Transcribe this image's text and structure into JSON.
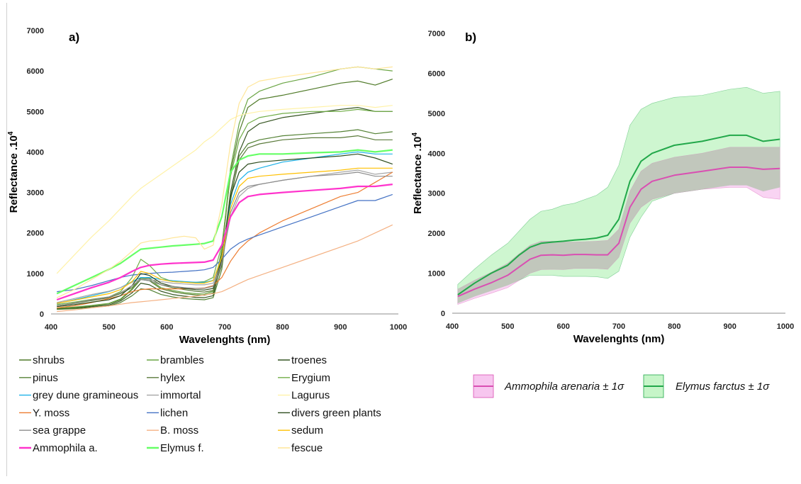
{
  "chart_data": [
    {
      "panel": "a)",
      "type": "line",
      "xlabel": "Wavelenghts (nm)",
      "ylabel": "Reflectance .10",
      "ylabel_sup": "4",
      "xlim": [
        400,
        1000
      ],
      "ylim": [
        0,
        7000
      ],
      "x_ticks": [
        400,
        500,
        600,
        700,
        800,
        900,
        1000
      ],
      "y_ticks": [
        0,
        1000,
        2000,
        3000,
        4000,
        5000,
        6000,
        7000
      ],
      "grid": false,
      "legend_position": "bottom",
      "x": [
        410,
        440,
        470,
        500,
        520,
        540,
        555,
        570,
        590,
        610,
        630,
        650,
        665,
        680,
        695,
        710,
        725,
        740,
        760,
        800,
        850,
        900,
        930,
        960,
        990
      ],
      "series": [
        {
          "name": "shrubs",
          "color": "#4f7a28",
          "values": [
            130,
            160,
            200,
            250,
            350,
            600,
            850,
            820,
            620,
            550,
            500,
            470,
            460,
            520,
            1500,
            3500,
            4500,
            5100,
            5300,
            5400,
            5550,
            5700,
            5750,
            5650,
            5800
          ]
        },
        {
          "name": "brambles",
          "color": "#6aa544",
          "values": [
            140,
            170,
            210,
            260,
            370,
            620,
            880,
            850,
            650,
            580,
            530,
            500,
            490,
            560,
            1600,
            3600,
            4700,
            5300,
            5500,
            5700,
            5850,
            6050,
            6100,
            6050,
            6000
          ]
        },
        {
          "name": "troenes",
          "color": "#375623",
          "values": [
            120,
            140,
            180,
            220,
            320,
            520,
            760,
            720,
            560,
            480,
            440,
            410,
            400,
            450,
            1300,
            3000,
            4000,
            4500,
            4700,
            4850,
            4950,
            5050,
            5100,
            5000,
            5000
          ]
        },
        {
          "name": "pinus",
          "color": "#548235",
          "values": [
            110,
            130,
            160,
            200,
            280,
            450,
            620,
            600,
            480,
            420,
            380,
            360,
            350,
            400,
            1100,
            2800,
            3900,
            4200,
            4300,
            4400,
            4450,
            4500,
            4550,
            4450,
            4500
          ]
        },
        {
          "name": "hylex",
          "color": "#5a7a3a",
          "values": [
            200,
            260,
            330,
            400,
            500,
            650,
            900,
            880,
            720,
            650,
            600,
            560,
            540,
            580,
            1200,
            2900,
            3800,
            4100,
            4200,
            4300,
            4350,
            4350,
            4400,
            4300,
            4300
          ]
        },
        {
          "name": "Erygium",
          "color": "#70ad47",
          "values": [
            230,
            290,
            360,
            420,
            550,
            900,
            1350,
            1200,
            900,
            800,
            780,
            780,
            800,
            900,
            1700,
            3400,
            4300,
            4700,
            4850,
            4950,
            5000,
            5000,
            5050,
            5000,
            5000
          ]
        },
        {
          "name": "grey dune gramineous",
          "color": "#1fb2e8",
          "values": [
            250,
            350,
            450,
            550,
            650,
            800,
            900,
            900,
            850,
            820,
            800,
            780,
            780,
            830,
            1400,
            2700,
            3300,
            3500,
            3600,
            3750,
            3850,
            3950,
            4000,
            3950,
            3950
          ]
        },
        {
          "name": "immortal",
          "color": "#a6a6a6",
          "values": [
            280,
            380,
            480,
            560,
            650,
            780,
            850,
            850,
            800,
            760,
            740,
            720,
            720,
            760,
            1300,
            2400,
            2900,
            3100,
            3200,
            3300,
            3400,
            3500,
            3550,
            3450,
            3500
          ]
        },
        {
          "name": "Lagurus",
          "color": "#fff2a8",
          "values": [
            1000,
            1450,
            1900,
            2300,
            2600,
            2900,
            3100,
            3250,
            3450,
            3650,
            3850,
            4050,
            4250,
            4400,
            4600,
            4800,
            4900,
            4950,
            5000,
            5050,
            5100,
            5150,
            5150,
            5100,
            5150
          ]
        },
        {
          "name": "Y. moss",
          "color": "#ed7d31",
          "values": [
            150,
            200,
            280,
            380,
            450,
            550,
            600,
            620,
            620,
            620,
            620,
            630,
            640,
            700,
            900,
            1300,
            1600,
            1800,
            2000,
            2300,
            2600,
            2900,
            3000,
            3250,
            3500
          ]
        },
        {
          "name": "lichen",
          "color": "#4472c4",
          "values": [
            550,
            600,
            700,
            820,
            900,
            960,
            980,
            1000,
            1020,
            1030,
            1050,
            1070,
            1090,
            1150,
            1350,
            1600,
            1750,
            1850,
            1950,
            2150,
            2400,
            2650,
            2800,
            2800,
            2950
          ]
        },
        {
          "name": "divers green plants",
          "color": "#2e4d1f",
          "values": [
            180,
            230,
            290,
            350,
            450,
            700,
            1000,
            950,
            760,
            680,
            630,
            600,
            590,
            630,
            1350,
            2900,
            3500,
            3700,
            3750,
            3800,
            3850,
            3900,
            3950,
            3850,
            3700
          ]
        },
        {
          "name": "sea grappe",
          "color": "#8c8c8c",
          "values": [
            200,
            270,
            350,
            420,
            520,
            700,
            850,
            820,
            720,
            680,
            650,
            630,
            630,
            680,
            1250,
            2500,
            3000,
            3150,
            3200,
            3300,
            3400,
            3450,
            3500,
            3400,
            3400
          ]
        },
        {
          "name": "B. moss",
          "color": "#f4b183",
          "values": [
            60,
            100,
            150,
            200,
            240,
            280,
            300,
            320,
            350,
            380,
            410,
            440,
            470,
            500,
            550,
            650,
            750,
            850,
            950,
            1150,
            1400,
            1650,
            1800,
            2000,
            2200
          ]
        },
        {
          "name": "sedum",
          "color": "#ffc000",
          "values": [
            260,
            340,
            420,
            500,
            600,
            800,
            1050,
            1000,
            850,
            800,
            780,
            760,
            760,
            820,
            1400,
            2600,
            3150,
            3350,
            3400,
            3450,
            3500,
            3550,
            3600,
            3600,
            3600
          ]
        },
        {
          "name": "Ammophila a.",
          "color": "#ff33cc",
          "values": [
            350,
            500,
            650,
            780,
            900,
            1050,
            1150,
            1200,
            1230,
            1250,
            1260,
            1270,
            1280,
            1330,
            1700,
            2400,
            2750,
            2900,
            2950,
            3000,
            3050,
            3100,
            3150,
            3150,
            3200
          ]
        },
        {
          "name": "Elymus f.",
          "color": "#66ff66",
          "values": [
            500,
            700,
            900,
            1100,
            1250,
            1450,
            1600,
            1620,
            1650,
            1680,
            1700,
            1720,
            1740,
            1800,
            2400,
            3500,
            3800,
            3900,
            3950,
            3950,
            3980,
            4000,
            4050,
            4000,
            4050
          ]
        },
        {
          "name": "fescue",
          "color": "#ffe699",
          "values": [
            400,
            600,
            850,
            1100,
            1300,
            1550,
            1750,
            1800,
            1820,
            1880,
            1920,
            1880,
            1600,
            1700,
            2700,
            4200,
            5200,
            5600,
            5750,
            5850,
            5950,
            6050,
            6100,
            6050,
            6100
          ]
        }
      ]
    },
    {
      "panel": "b)",
      "type": "area",
      "xlabel": "Wavelenghts (nm)",
      "ylabel": "Reflectance .10",
      "ylabel_sup": "4",
      "xlim": [
        400,
        1000
      ],
      "ylim": [
        0,
        7000
      ],
      "x_ticks": [
        400,
        500,
        600,
        700,
        800,
        900,
        1000
      ],
      "y_ticks": [
        0,
        1000,
        2000,
        3000,
        4000,
        5000,
        6000,
        7000
      ],
      "grid": false,
      "legend_position": "right",
      "x": [
        410,
        440,
        470,
        500,
        520,
        540,
        560,
        580,
        600,
        620,
        640,
        660,
        680,
        700,
        720,
        740,
        760,
        800,
        850,
        900,
        930,
        960,
        990
      ],
      "series": [
        {
          "name": "Ammophila arenaria ± 1σ",
          "color": "#d94fb2",
          "band_color": "#f7c6ef",
          "mean": [
            420,
            600,
            760,
            950,
            1150,
            1350,
            1450,
            1460,
            1450,
            1470,
            1470,
            1460,
            1460,
            1750,
            2650,
            3100,
            3300,
            3450,
            3550,
            3650,
            3650,
            3600,
            3620
          ],
          "upper": [
            600,
            820,
            1020,
            1250,
            1480,
            1700,
            1800,
            1800,
            1780,
            1780,
            1790,
            1800,
            1820,
            2100,
            3050,
            3550,
            3750,
            3900,
            4000,
            4150,
            4150,
            4150,
            4150
          ],
          "lower": [
            220,
            370,
            500,
            640,
            820,
            1000,
            1090,
            1100,
            1090,
            1120,
            1120,
            1120,
            1100,
            1400,
            2250,
            2650,
            2850,
            3000,
            3100,
            3150,
            3150,
            2900,
            2850
          ]
        },
        {
          "name": "Elymus farctus ± 1σ",
          "color": "#22a84a",
          "band_color": "#c6f5c8",
          "mean": [
            460,
            750,
            1000,
            1200,
            1450,
            1650,
            1750,
            1780,
            1800,
            1830,
            1850,
            1880,
            1950,
            2350,
            3300,
            3800,
            4000,
            4200,
            4300,
            4450,
            4450,
            4300,
            4350
          ],
          "upper": [
            720,
            1100,
            1450,
            1750,
            2050,
            2350,
            2550,
            2600,
            2700,
            2750,
            2850,
            2950,
            3150,
            3700,
            4700,
            5100,
            5250,
            5400,
            5450,
            5600,
            5650,
            5500,
            5550
          ],
          "lower": [
            250,
            420,
            560,
            700,
            820,
            950,
            950,
            950,
            920,
            920,
            920,
            910,
            870,
            1050,
            1900,
            2400,
            2800,
            3000,
            3100,
            3200,
            3200,
            3050,
            3150
          ]
        }
      ]
    }
  ]
}
